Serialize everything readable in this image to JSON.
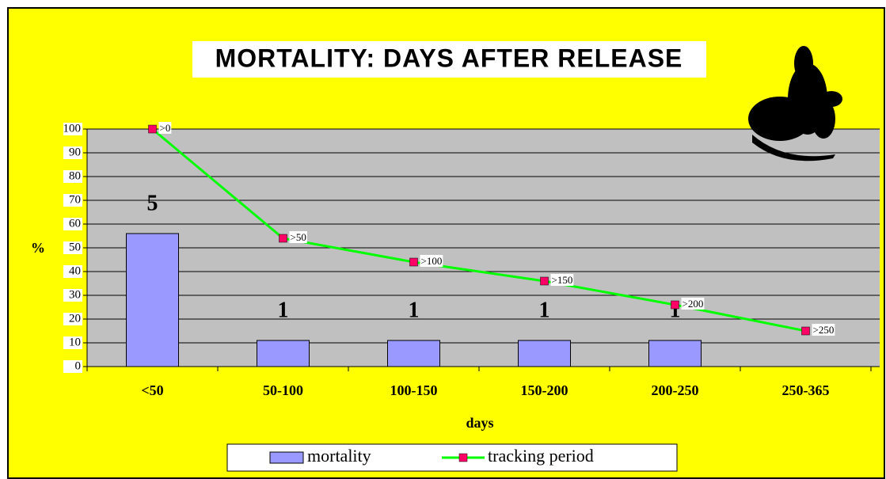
{
  "chart_data": {
    "type": "bar-line",
    "title": "MORTALITY: DAYS AFTER RELEASE",
    "x_label": "days",
    "y_label": "%",
    "categories": [
      "<50",
      "50-100",
      "100-150",
      "150-200",
      "200-250",
      "250-365"
    ],
    "series": [
      {
        "name": "mortality",
        "type": "bar",
        "color": "#9999ff",
        "values": [
          56,
          11,
          11,
          11,
          11,
          null
        ],
        "annotations": [
          "5",
          "1",
          "1",
          "1",
          "1",
          null
        ]
      },
      {
        "name": "tracking period",
        "type": "line",
        "color": "#00ff00",
        "marker_color": "#ff0066",
        "values": [
          100,
          54,
          44,
          36,
          26,
          15
        ],
        "point_labels": [
          ">0",
          ">50",
          ">100",
          ">150",
          ">200",
          ">250"
        ]
      }
    ],
    "ylim": [
      0,
      100
    ],
    "yticks": [
      0,
      10,
      20,
      30,
      40,
      50,
      60,
      70,
      80,
      90,
      100
    ],
    "grid": true
  }
}
